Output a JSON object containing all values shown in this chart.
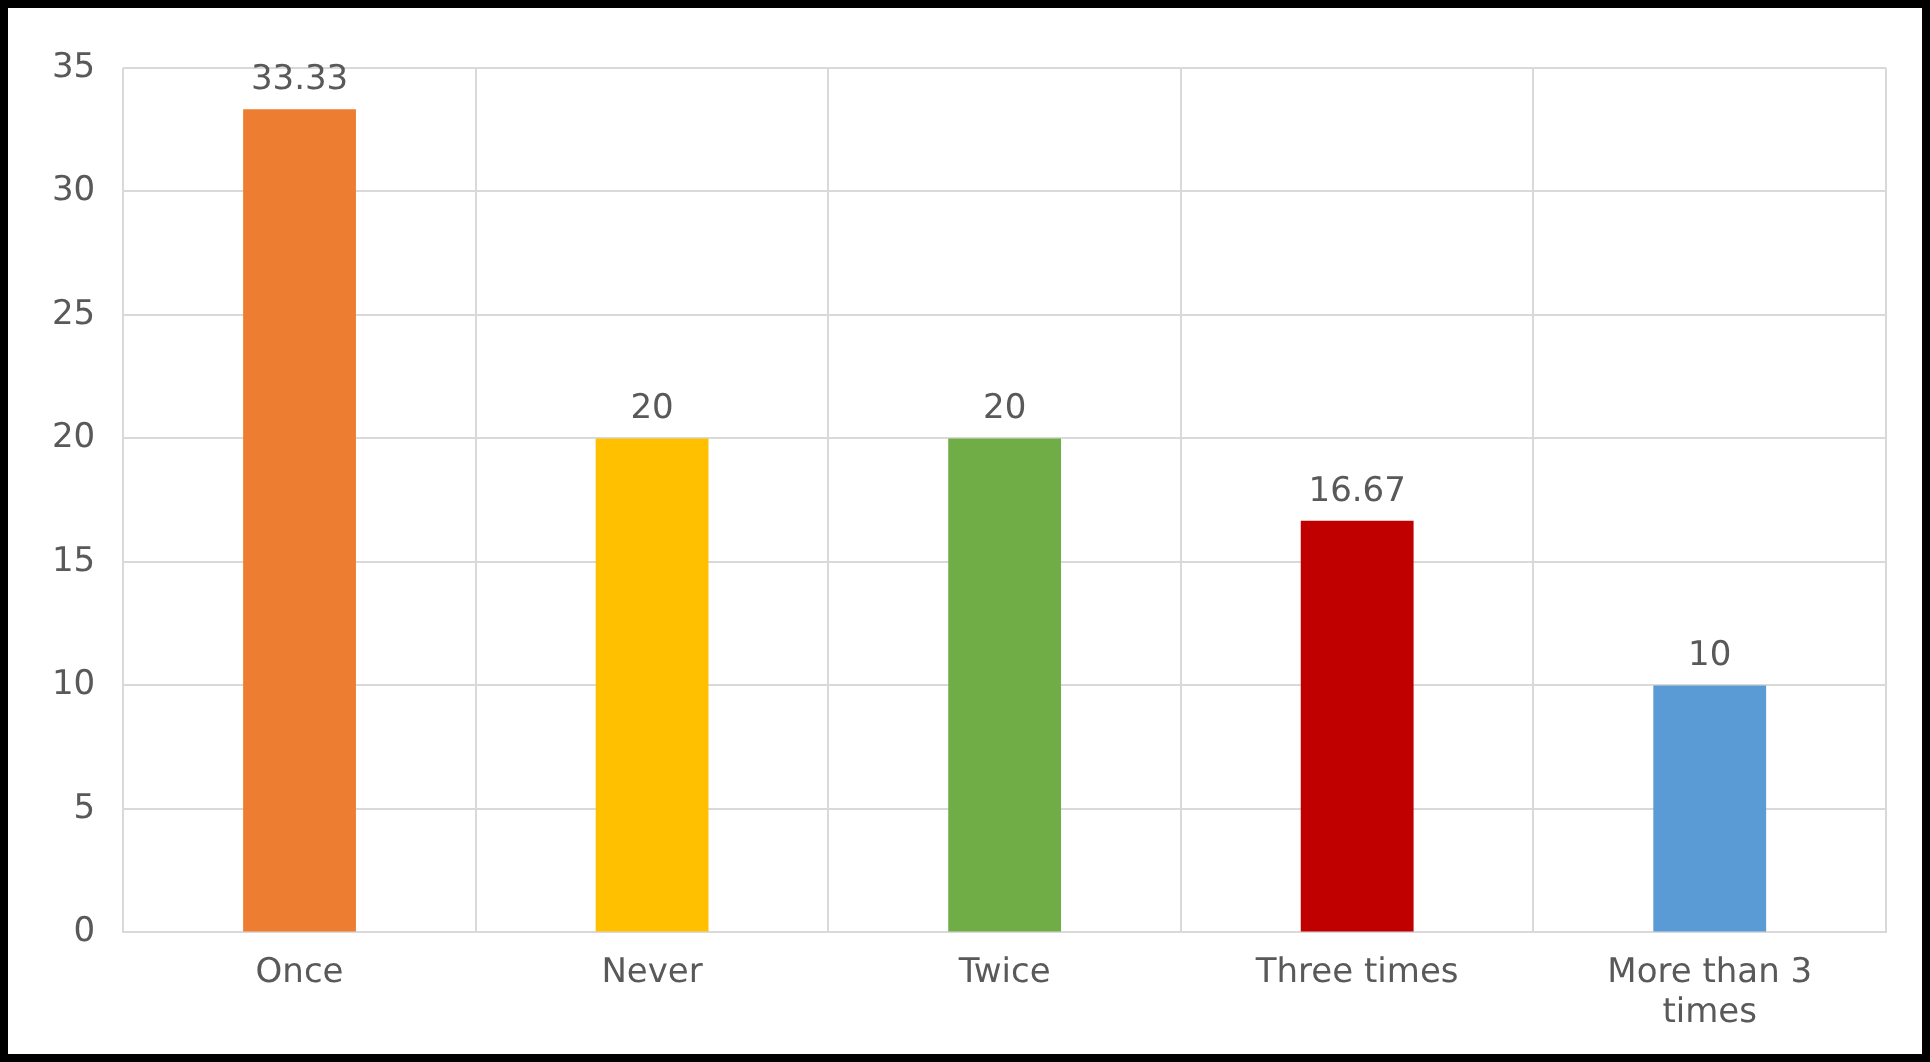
{
  "chart_data": {
    "type": "bar",
    "categories": [
      "Once",
      "Never",
      "Twice",
      "Three times",
      "More than 3 times"
    ],
    "values": [
      33.33,
      20,
      20,
      16.67,
      10
    ],
    "colors": [
      "#ed7d31",
      "#ffc000",
      "#70ad47",
      "#c00000",
      "#5b9bd5"
    ],
    "ylim": [
      0,
      35
    ],
    "yticks": [
      0,
      5,
      10,
      15,
      20,
      25,
      30,
      35
    ],
    "grid": true,
    "legend": false,
    "data_labels": true
  }
}
